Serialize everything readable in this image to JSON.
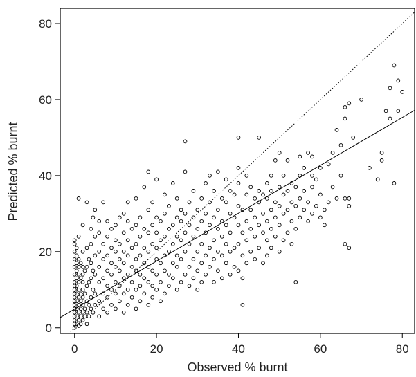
{
  "chart_data": {
    "type": "scatter",
    "title": "",
    "xlabel": "Observed % burnt",
    "ylabel": "Predicted % burnt",
    "xlim": [
      -3.5,
      83
    ],
    "ylim": [
      -1.5,
      84
    ],
    "xticks": [
      0,
      20,
      40,
      60,
      80
    ],
    "yticks": [
      0,
      20,
      40,
      60,
      80
    ],
    "grid": false,
    "legend": "none",
    "reference_lines": [
      {
        "kind": "identity",
        "style": "dotted",
        "slope": 1,
        "intercept": 0
      },
      {
        "kind": "fit",
        "style": "solid",
        "slope": 0.63,
        "intercept": 4.9
      }
    ],
    "marker": "open-circle",
    "points_note": "approximate cloud of ~700 observations; values below are a representative reading of the scatter",
    "points": [
      [
        0,
        0
      ],
      [
        0,
        1
      ],
      [
        0,
        2
      ],
      [
        0,
        3
      ],
      [
        0,
        4
      ],
      [
        0,
        5
      ],
      [
        0,
        6
      ],
      [
        0,
        7
      ],
      [
        0,
        8
      ],
      [
        0,
        9
      ],
      [
        0,
        10
      ],
      [
        0,
        11
      ],
      [
        0,
        12
      ],
      [
        0,
        14
      ],
      [
        0,
        16
      ],
      [
        0,
        18
      ],
      [
        0,
        20
      ],
      [
        0,
        22
      ],
      [
        0,
        23
      ],
      [
        0.5,
        1
      ],
      [
        0.5,
        3
      ],
      [
        0.5,
        5
      ],
      [
        0.5,
        7
      ],
      [
        0.5,
        9
      ],
      [
        0.5,
        11
      ],
      [
        0.5,
        13
      ],
      [
        0.5,
        15
      ],
      [
        0.5,
        17
      ],
      [
        0.5,
        19
      ],
      [
        0.5,
        21
      ],
      [
        1,
        0.5
      ],
      [
        1,
        2
      ],
      [
        1,
        4
      ],
      [
        1,
        6
      ],
      [
        1,
        8
      ],
      [
        1,
        10
      ],
      [
        1,
        12
      ],
      [
        1,
        14
      ],
      [
        1,
        16
      ],
      [
        1,
        18
      ],
      [
        1,
        24
      ],
      [
        1,
        34
      ],
      [
        1.5,
        1
      ],
      [
        1.5,
        3
      ],
      [
        1.5,
        5
      ],
      [
        1.5,
        7
      ],
      [
        1.5,
        9
      ],
      [
        1.5,
        13
      ],
      [
        1.5,
        17
      ],
      [
        2,
        2
      ],
      [
        2,
        4
      ],
      [
        2,
        6
      ],
      [
        2,
        8
      ],
      [
        2,
        10
      ],
      [
        2,
        12
      ],
      [
        2,
        14
      ],
      [
        2,
        16
      ],
      [
        2,
        20
      ],
      [
        2,
        27
      ],
      [
        2.5,
        3
      ],
      [
        2.5,
        5
      ],
      [
        2.5,
        9
      ],
      [
        2.5,
        15
      ],
      [
        3,
        1
      ],
      [
        3,
        4
      ],
      [
        3,
        7
      ],
      [
        3,
        11
      ],
      [
        3,
        16
      ],
      [
        3,
        21
      ],
      [
        3,
        33
      ],
      [
        3.5,
        3
      ],
      [
        3.5,
        6
      ],
      [
        3.5,
        12
      ],
      [
        3.5,
        18
      ],
      [
        4,
        5
      ],
      [
        4,
        8
      ],
      [
        4,
        13
      ],
      [
        4,
        17
      ],
      [
        4,
        22
      ],
      [
        4,
        26
      ],
      [
        4.5,
        4
      ],
      [
        4.5,
        10
      ],
      [
        4.5,
        15
      ],
      [
        4.5,
        29
      ],
      [
        5,
        6
      ],
      [
        5,
        9
      ],
      [
        5,
        14
      ],
      [
        5,
        19
      ],
      [
        5,
        24
      ],
      [
        5,
        31
      ],
      [
        6,
        3
      ],
      [
        6,
        7
      ],
      [
        6,
        12
      ],
      [
        6,
        16
      ],
      [
        6,
        20
      ],
      [
        6,
        25
      ],
      [
        6,
        28
      ],
      [
        7,
        5
      ],
      [
        7,
        9
      ],
      [
        7,
        13
      ],
      [
        7,
        18
      ],
      [
        7,
        22
      ],
      [
        7,
        33
      ],
      [
        8,
        4
      ],
      [
        8,
        8
      ],
      [
        8,
        11
      ],
      [
        8,
        15
      ],
      [
        8,
        19
      ],
      [
        8,
        24
      ],
      [
        8,
        28
      ],
      [
        9,
        6
      ],
      [
        9,
        10
      ],
      [
        9,
        14
      ],
      [
        9,
        17
      ],
      [
        9,
        21
      ],
      [
        9,
        26
      ],
      [
        10,
        5
      ],
      [
        10,
        9
      ],
      [
        10,
        12
      ],
      [
        10,
        16
      ],
      [
        10,
        20
      ],
      [
        10,
        23
      ],
      [
        10,
        27
      ],
      [
        11,
        7
      ],
      [
        11,
        11
      ],
      [
        11,
        15
      ],
      [
        11,
        18
      ],
      [
        11,
        22
      ],
      [
        11,
        29
      ],
      [
        12,
        4
      ],
      [
        12,
        9
      ],
      [
        12,
        13
      ],
      [
        12,
        17
      ],
      [
        12,
        20
      ],
      [
        12,
        25
      ],
      [
        12,
        30
      ],
      [
        13,
        6
      ],
      [
        13,
        10
      ],
      [
        13,
        14
      ],
      [
        13,
        19
      ],
      [
        13,
        23
      ],
      [
        13,
        28
      ],
      [
        13,
        33
      ],
      [
        14,
        8
      ],
      [
        14,
        12
      ],
      [
        14,
        16
      ],
      [
        14,
        21
      ],
      [
        14,
        26
      ],
      [
        15,
        5
      ],
      [
        15,
        10
      ],
      [
        15,
        15
      ],
      [
        15,
        18
      ],
      [
        15,
        22
      ],
      [
        15,
        27
      ],
      [
        15,
        34
      ],
      [
        16,
        7
      ],
      [
        16,
        11
      ],
      [
        16,
        14
      ],
      [
        16,
        19
      ],
      [
        16,
        24
      ],
      [
        16,
        29
      ],
      [
        17,
        9
      ],
      [
        17,
        13
      ],
      [
        17,
        17
      ],
      [
        17,
        21
      ],
      [
        17,
        26
      ],
      [
        17,
        37
      ],
      [
        18,
        6
      ],
      [
        18,
        12
      ],
      [
        18,
        16
      ],
      [
        18,
        20
      ],
      [
        18,
        25
      ],
      [
        18,
        31
      ],
      [
        18,
        41
      ],
      [
        19,
        8
      ],
      [
        19,
        11
      ],
      [
        19,
        15
      ],
      [
        19,
        22
      ],
      [
        19,
        27
      ],
      [
        19,
        33
      ],
      [
        20,
        10
      ],
      [
        20,
        14
      ],
      [
        20,
        18
      ],
      [
        20,
        21
      ],
      [
        20,
        25
      ],
      [
        20,
        29
      ],
      [
        20,
        39
      ],
      [
        21,
        7
      ],
      [
        21,
        12
      ],
      [
        21,
        17
      ],
      [
        21,
        23
      ],
      [
        21,
        28
      ],
      [
        22,
        9
      ],
      [
        22,
        15
      ],
      [
        22,
        19
      ],
      [
        22,
        24
      ],
      [
        22,
        30
      ],
      [
        22,
        35
      ],
      [
        23,
        11
      ],
      [
        23,
        14
      ],
      [
        23,
        20
      ],
      [
        23,
        26
      ],
      [
        23,
        32
      ],
      [
        24,
        13
      ],
      [
        24,
        17
      ],
      [
        24,
        22
      ],
      [
        24,
        27
      ],
      [
        24,
        38
      ],
      [
        25,
        10
      ],
      [
        25,
        16
      ],
      [
        25,
        19
      ],
      [
        25,
        24
      ],
      [
        25,
        29
      ],
      [
        25,
        34
      ],
      [
        26,
        12
      ],
      [
        26,
        18
      ],
      [
        26,
        23
      ],
      [
        26,
        28
      ],
      [
        26,
        31
      ],
      [
        27,
        14
      ],
      [
        27,
        20
      ],
      [
        27,
        25
      ],
      [
        27,
        30
      ],
      [
        27,
        41
      ],
      [
        27,
        49
      ],
      [
        28,
        11
      ],
      [
        28,
        16
      ],
      [
        28,
        22
      ],
      [
        28,
        27
      ],
      [
        28,
        33
      ],
      [
        29,
        13
      ],
      [
        29,
        18
      ],
      [
        29,
        24
      ],
      [
        29,
        29
      ],
      [
        29,
        36
      ],
      [
        30,
        10
      ],
      [
        30,
        15
      ],
      [
        30,
        20
      ],
      [
        30,
        26
      ],
      [
        30,
        31
      ],
      [
        31,
        12
      ],
      [
        31,
        17
      ],
      [
        31,
        22
      ],
      [
        31,
        28
      ],
      [
        31,
        34
      ],
      [
        32,
        14
      ],
      [
        32,
        19
      ],
      [
        32,
        25
      ],
      [
        32,
        30
      ],
      [
        32,
        38
      ],
      [
        33,
        16
      ],
      [
        33,
        21
      ],
      [
        33,
        27
      ],
      [
        33,
        33
      ],
      [
        33,
        40
      ],
      [
        34,
        12
      ],
      [
        34,
        18
      ],
      [
        34,
        23
      ],
      [
        34,
        29
      ],
      [
        34,
        36
      ],
      [
        35,
        15
      ],
      [
        35,
        20
      ],
      [
        35,
        26
      ],
      [
        35,
        31
      ],
      [
        35,
        41
      ],
      [
        36,
        13
      ],
      [
        36,
        19
      ],
      [
        36,
        24
      ],
      [
        36,
        28
      ],
      [
        36,
        34
      ],
      [
        37,
        17
      ],
      [
        37,
        22
      ],
      [
        37,
        27
      ],
      [
        37,
        33
      ],
      [
        37,
        39
      ],
      [
        38,
        14
      ],
      [
        38,
        20
      ],
      [
        38,
        25
      ],
      [
        38,
        30
      ],
      [
        38,
        36
      ],
      [
        39,
        16
      ],
      [
        39,
        21
      ],
      [
        39,
        29
      ],
      [
        39,
        35
      ],
      [
        40,
        15
      ],
      [
        40,
        22
      ],
      [
        40,
        27
      ],
      [
        40,
        32
      ],
      [
        40,
        38
      ],
      [
        40,
        42
      ],
      [
        40,
        50
      ],
      [
        41,
        6
      ],
      [
        41,
        13
      ],
      [
        41,
        19
      ],
      [
        41,
        25
      ],
      [
        41,
        31
      ],
      [
        42,
        17
      ],
      [
        42,
        23
      ],
      [
        42,
        28
      ],
      [
        42,
        35
      ],
      [
        42,
        40
      ],
      [
        43,
        20
      ],
      [
        43,
        26
      ],
      [
        43,
        31
      ],
      [
        43,
        37
      ],
      [
        44,
        18
      ],
      [
        44,
        24
      ],
      [
        44,
        29
      ],
      [
        44,
        34
      ],
      [
        45,
        21
      ],
      [
        45,
        27
      ],
      [
        45,
        33
      ],
      [
        45,
        36
      ],
      [
        45,
        50
      ],
      [
        46,
        17
      ],
      [
        46,
        25
      ],
      [
        46,
        30
      ],
      [
        46,
        35
      ],
      [
        47,
        19
      ],
      [
        47,
        23
      ],
      [
        47,
        28
      ],
      [
        47,
        34
      ],
      [
        47,
        38
      ],
      [
        48,
        21
      ],
      [
        48,
        26
      ],
      [
        48,
        31
      ],
      [
        48,
        36
      ],
      [
        48,
        40
      ],
      [
        49,
        24
      ],
      [
        49,
        29
      ],
      [
        49,
        33
      ],
      [
        49,
        44
      ],
      [
        50,
        20
      ],
      [
        50,
        27
      ],
      [
        50,
        32
      ],
      [
        50,
        37
      ],
      [
        50,
        46
      ],
      [
        51,
        23
      ],
      [
        51,
        30
      ],
      [
        51,
        35
      ],
      [
        51,
        40
      ],
      [
        52,
        25
      ],
      [
        52,
        31
      ],
      [
        52,
        36
      ],
      [
        52,
        44
      ],
      [
        53,
        22
      ],
      [
        53,
        28
      ],
      [
        53,
        33
      ],
      [
        53,
        38
      ],
      [
        54,
        12
      ],
      [
        54,
        26
      ],
      [
        54,
        32
      ],
      [
        54,
        37
      ],
      [
        55,
        29
      ],
      [
        55,
        34
      ],
      [
        55,
        40
      ],
      [
        55,
        45
      ],
      [
        56,
        31
      ],
      [
        56,
        36
      ],
      [
        56,
        42
      ],
      [
        57,
        28
      ],
      [
        57,
        33
      ],
      [
        57,
        46
      ],
      [
        58,
        30
      ],
      [
        58,
        37
      ],
      [
        58,
        40
      ],
      [
        58,
        45
      ],
      [
        59,
        32
      ],
      [
        59,
        39
      ],
      [
        60,
        29
      ],
      [
        60,
        35
      ],
      [
        60,
        42
      ],
      [
        61,
        31
      ],
      [
        61,
        27
      ],
      [
        62,
        33
      ],
      [
        62,
        43
      ],
      [
        63,
        37
      ],
      [
        63,
        46
      ],
      [
        64,
        34
      ],
      [
        64,
        52
      ],
      [
        65,
        40
      ],
      [
        65,
        48
      ],
      [
        66,
        22
      ],
      [
        66,
        34
      ],
      [
        66,
        55
      ],
      [
        66,
        58
      ],
      [
        67,
        21
      ],
      [
        67,
        32
      ],
      [
        67,
        34
      ],
      [
        67,
        59
      ],
      [
        68,
        50
      ],
      [
        70,
        60
      ],
      [
        72,
        42
      ],
      [
        74,
        39
      ],
      [
        75,
        44
      ],
      [
        75,
        46
      ],
      [
        76,
        57
      ],
      [
        77,
        55
      ],
      [
        77,
        63
      ],
      [
        78,
        38
      ],
      [
        78,
        69
      ],
      [
        79,
        57
      ],
      [
        79,
        65
      ],
      [
        80,
        62
      ]
    ]
  }
}
